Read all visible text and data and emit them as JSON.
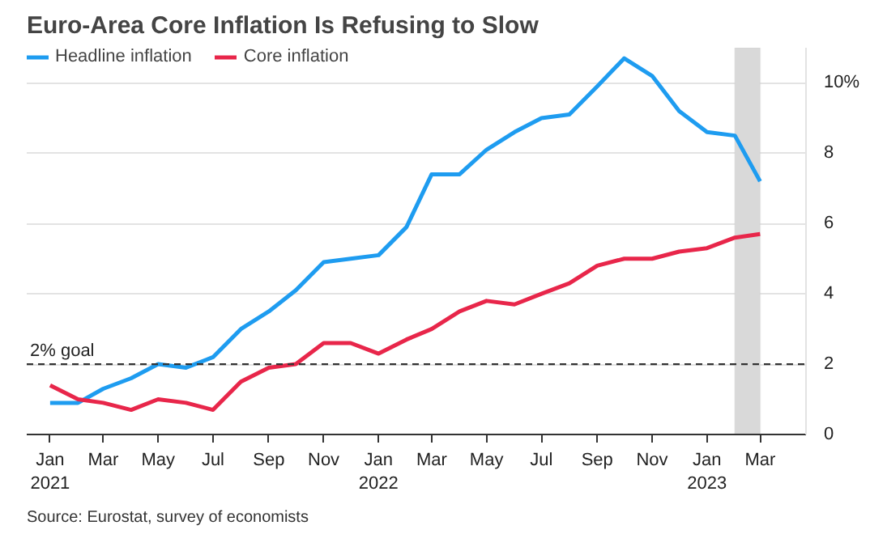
{
  "chart_data": {
    "type": "line",
    "title": "Euro-Area Core Inflation Is Refusing to Slow",
    "x": [
      "2021-01",
      "2021-02",
      "2021-03",
      "2021-04",
      "2021-05",
      "2021-06",
      "2021-07",
      "2021-08",
      "2021-09",
      "2021-10",
      "2021-11",
      "2021-12",
      "2022-01",
      "2022-02",
      "2022-03",
      "2022-04",
      "2022-05",
      "2022-06",
      "2022-07",
      "2022-08",
      "2022-09",
      "2022-10",
      "2022-11",
      "2022-12",
      "2023-01",
      "2023-02",
      "2023-03"
    ],
    "series": [
      {
        "name": "Headline inflation",
        "color": "#1e9cf0",
        "values": [
          0.9,
          0.9,
          1.3,
          1.6,
          2.0,
          1.9,
          2.2,
          3.0,
          3.5,
          4.1,
          4.9,
          5.0,
          5.1,
          5.9,
          7.4,
          7.4,
          8.1,
          8.6,
          9.0,
          9.1,
          9.9,
          10.7,
          10.2,
          9.2,
          8.6,
          8.5,
          7.2
        ]
      },
      {
        "name": "Core inflation",
        "color": "#e8264a",
        "values": [
          1.4,
          1.0,
          0.9,
          0.7,
          1.0,
          0.9,
          0.7,
          1.5,
          1.9,
          2.0,
          2.6,
          2.6,
          2.3,
          2.7,
          3.0,
          3.5,
          3.8,
          3.7,
          4.0,
          4.3,
          4.8,
          5.0,
          5.0,
          5.2,
          5.3,
          5.6,
          5.7
        ]
      }
    ],
    "xlim": [
      "2020-12-06",
      "2023-04-21"
    ],
    "xticks": [
      {
        "value": "2021-01",
        "label": "Jan\n2021"
      },
      {
        "value": "2021-03",
        "label": "Mar"
      },
      {
        "value": "2021-05",
        "label": "May"
      },
      {
        "value": "2021-07",
        "label": "Jul"
      },
      {
        "value": "2021-09",
        "label": "Sep"
      },
      {
        "value": "2021-11",
        "label": "Nov"
      },
      {
        "value": "2022-01",
        "label": "Jan\n2022"
      },
      {
        "value": "2022-03",
        "label": "Mar"
      },
      {
        "value": "2022-05",
        "label": "May"
      },
      {
        "value": "2022-07",
        "label": "Jul"
      },
      {
        "value": "2022-09",
        "label": "Sep"
      },
      {
        "value": "2022-11",
        "label": "Nov"
      },
      {
        "value": "2023-01",
        "label": "Jan\n2023"
      },
      {
        "value": "2023-03",
        "label": "Mar"
      }
    ],
    "ylim": [
      0,
      11
    ],
    "yticks": [
      0,
      2,
      4,
      6,
      8,
      {
        "value": 10,
        "label": "10%"
      }
    ],
    "grid": "y",
    "legend": "top left",
    "ref_lines": [
      {
        "axis": "y",
        "value": 2,
        "label": "2% goal",
        "color": "#333333",
        "line_style": "dashed"
      }
    ],
    "bands": [
      {
        "axis": "x",
        "from": "2023-02",
        "to": "2023-03",
        "color": "#d9d9d9"
      }
    ],
    "annotations": [
      "Source: Eurostat, survey of economists"
    ]
  }
}
